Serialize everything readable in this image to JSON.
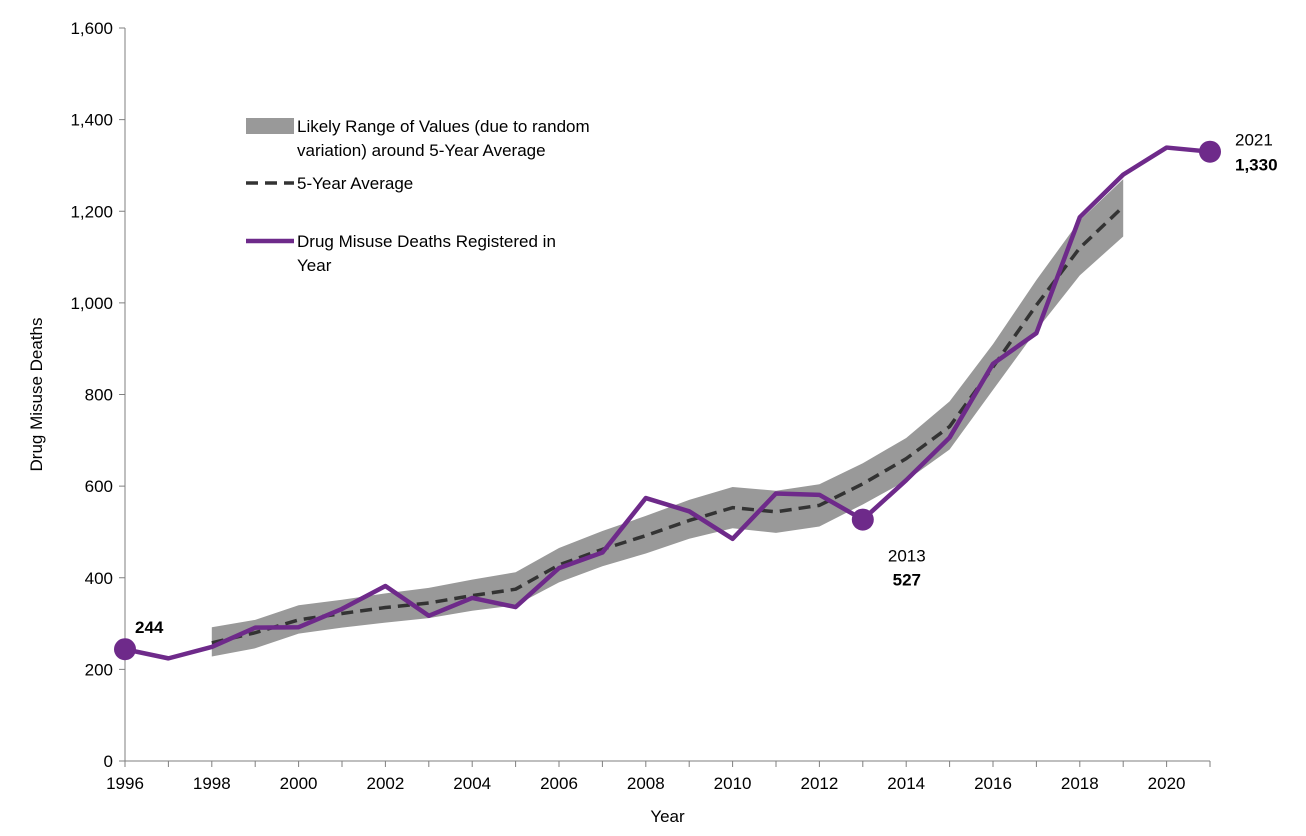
{
  "chart_data": {
    "type": "line",
    "title": "",
    "xlabel": "Year",
    "ylabel": "Drug Misuse Deaths",
    "xlim": [
      1996,
      2021
    ],
    "ylim": [
      0,
      1600
    ],
    "x_ticks": [
      1996,
      1998,
      2000,
      2002,
      2004,
      2006,
      2008,
      2010,
      2012,
      2014,
      2016,
      2018,
      2020
    ],
    "x_tick_labels": [
      "1996",
      "1998",
      "2000",
      "2002",
      "2004",
      "2006",
      "2008",
      "2010",
      "2012",
      "2014",
      "2016",
      "2018",
      "2020"
    ],
    "y_ticks": [
      0,
      200,
      400,
      600,
      800,
      1000,
      1200,
      1400,
      1600
    ],
    "y_tick_labels": [
      "0",
      "200",
      "400",
      "600",
      "800",
      "1,000",
      "1,200",
      "1,400",
      "1,600"
    ],
    "grid": false,
    "legend_position": "top-left",
    "series": [
      {
        "name": "Likely Range of Values (due to random variation) around 5-Year Average",
        "legend_lines": [
          "Likely Range of Values (due to random",
          "variation) around 5-Year Average"
        ],
        "kind": "band",
        "color": "#999999",
        "x": [
          1998,
          1999,
          2000,
          2001,
          2002,
          2003,
          2004,
          2005,
          2006,
          2007,
          2008,
          2009,
          2010,
          2011,
          2012,
          2013,
          2014,
          2015,
          2016,
          2017,
          2018,
          2019
        ],
        "lower": [
          228,
          246,
          278,
          291,
          302,
          312,
          328,
          340,
          390,
          425,
          453,
          485,
          508,
          498,
          512,
          560,
          612,
          680,
          810,
          940,
          1060,
          1145
        ],
        "upper": [
          292,
          308,
          340,
          352,
          366,
          378,
          396,
          412,
          465,
          502,
          535,
          570,
          598,
          590,
          604,
          650,
          705,
          785,
          910,
          1050,
          1180,
          1270
        ]
      },
      {
        "name": "5-Year Average",
        "legend_lines": [
          "5-Year Average"
        ],
        "kind": "dashed",
        "color": "#333333",
        "x": [
          1998,
          1999,
          2000,
          2001,
          2002,
          2003,
          2004,
          2005,
          2006,
          2007,
          2008,
          2009,
          2010,
          2011,
          2012,
          2013,
          2014,
          2015,
          2016,
          2017,
          2018,
          2019
        ],
        "values": [
          258,
          280,
          308,
          322,
          335,
          345,
          361,
          375,
          428,
          462,
          492,
          525,
          553,
          544,
          558,
          605,
          660,
          730,
          860,
          995,
          1120,
          1210
        ]
      },
      {
        "name": "Drug Misuse Deaths Registered in Year",
        "legend_lines": [
          "Drug Misuse Deaths Registered in",
          "Year"
        ],
        "kind": "line",
        "color": "#6e2a8a",
        "x": [
          1996,
          1997,
          1998,
          1999,
          2000,
          2001,
          2002,
          2003,
          2004,
          2005,
          2006,
          2007,
          2008,
          2009,
          2010,
          2011,
          2012,
          2013,
          2014,
          2015,
          2016,
          2017,
          2018,
          2019,
          2020,
          2021
        ],
        "values": [
          244,
          224,
          249,
          291,
          292,
          332,
          382,
          317,
          356,
          336,
          421,
          455,
          574,
          545,
          485,
          584,
          581,
          527,
          613,
          706,
          867,
          934,
          1187,
          1280,
          1339,
          1330
        ]
      }
    ],
    "annotations": [
      {
        "x": 1996,
        "value": 244,
        "year_label": "",
        "value_label": "244",
        "placement": "upper-right"
      },
      {
        "x": 2013,
        "value": 527,
        "year_label": "2013",
        "value_label": "527",
        "placement": "below"
      },
      {
        "x": 2021,
        "value": 1330,
        "year_label": "2021",
        "value_label": "1,330",
        "placement": "right"
      }
    ]
  }
}
